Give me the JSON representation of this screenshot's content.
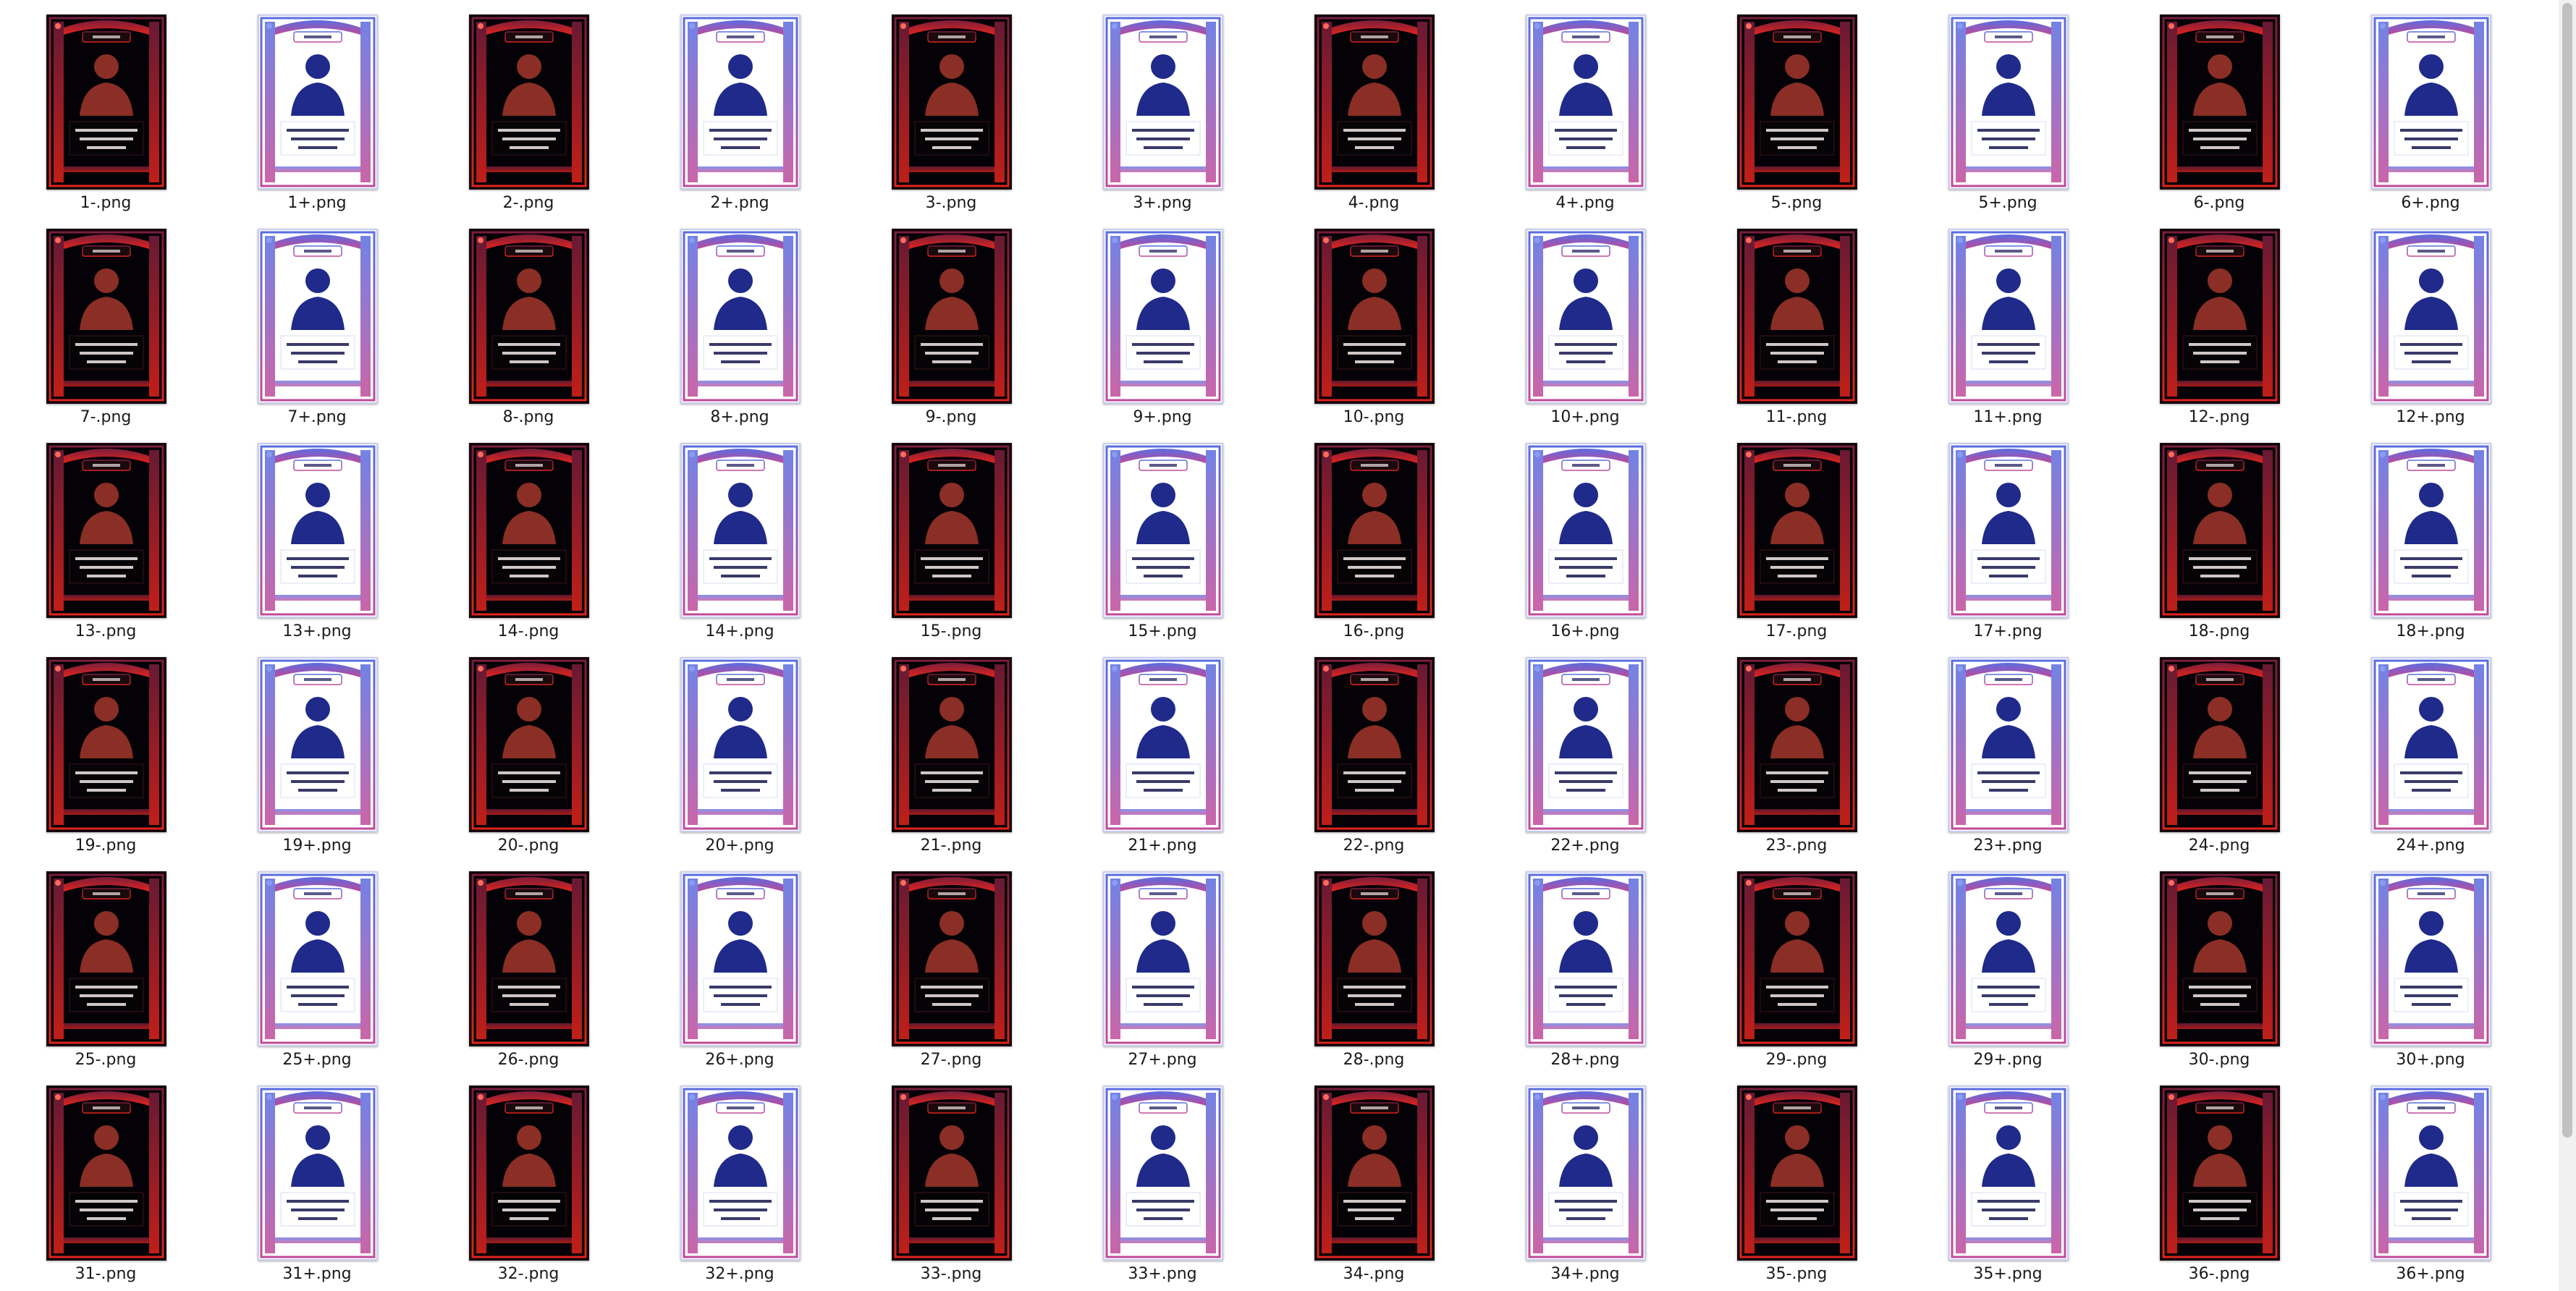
{
  "viewer": {
    "items": [
      {
        "label": "1-.png",
        "variant": "dark"
      },
      {
        "label": "1+.png",
        "variant": "light"
      },
      {
        "label": "2-.png",
        "variant": "dark"
      },
      {
        "label": "2+.png",
        "variant": "light"
      },
      {
        "label": "3-.png",
        "variant": "dark"
      },
      {
        "label": "3+.png",
        "variant": "light"
      },
      {
        "label": "4-.png",
        "variant": "dark"
      },
      {
        "label": "4+.png",
        "variant": "light"
      },
      {
        "label": "5-.png",
        "variant": "dark"
      },
      {
        "label": "5+.png",
        "variant": "light"
      },
      {
        "label": "6-.png",
        "variant": "dark"
      },
      {
        "label": "6+.png",
        "variant": "light"
      },
      {
        "label": "7-.png",
        "variant": "dark"
      },
      {
        "label": "7+.png",
        "variant": "light"
      },
      {
        "label": "8-.png",
        "variant": "dark"
      },
      {
        "label": "8+.png",
        "variant": "light"
      },
      {
        "label": "9-.png",
        "variant": "dark"
      },
      {
        "label": "9+.png",
        "variant": "light"
      },
      {
        "label": "10-.png",
        "variant": "dark"
      },
      {
        "label": "10+.png",
        "variant": "light"
      },
      {
        "label": "11-.png",
        "variant": "dark"
      },
      {
        "label": "11+.png",
        "variant": "light"
      },
      {
        "label": "12-.png",
        "variant": "dark"
      },
      {
        "label": "12+.png",
        "variant": "light"
      },
      {
        "label": "13-.png",
        "variant": "dark"
      },
      {
        "label": "13+.png",
        "variant": "light"
      },
      {
        "label": "14-.png",
        "variant": "dark"
      },
      {
        "label": "14+.png",
        "variant": "light"
      },
      {
        "label": "15-.png",
        "variant": "dark"
      },
      {
        "label": "15+.png",
        "variant": "light"
      },
      {
        "label": "16-.png",
        "variant": "dark"
      },
      {
        "label": "16+.png",
        "variant": "light"
      },
      {
        "label": "17-.png",
        "variant": "dark"
      },
      {
        "label": "17+.png",
        "variant": "light"
      },
      {
        "label": "18-.png",
        "variant": "dark"
      },
      {
        "label": "18+.png",
        "variant": "light"
      },
      {
        "label": "19-.png",
        "variant": "dark"
      },
      {
        "label": "19+.png",
        "variant": "light"
      },
      {
        "label": "20-.png",
        "variant": "dark"
      },
      {
        "label": "20+.png",
        "variant": "light"
      },
      {
        "label": "21-.png",
        "variant": "dark"
      },
      {
        "label": "21+.png",
        "variant": "light"
      },
      {
        "label": "22-.png",
        "variant": "dark"
      },
      {
        "label": "22+.png",
        "variant": "light"
      },
      {
        "label": "23-.png",
        "variant": "dark"
      },
      {
        "label": "23+.png",
        "variant": "light"
      },
      {
        "label": "24-.png",
        "variant": "dark"
      },
      {
        "label": "24+.png",
        "variant": "light"
      },
      {
        "label": "25-.png",
        "variant": "dark"
      },
      {
        "label": "25+.png",
        "variant": "light"
      },
      {
        "label": "26-.png",
        "variant": "dark"
      },
      {
        "label": "26+.png",
        "variant": "light"
      },
      {
        "label": "27-.png",
        "variant": "dark"
      },
      {
        "label": "27+.png",
        "variant": "light"
      },
      {
        "label": "28-.png",
        "variant": "dark"
      },
      {
        "label": "28+.png",
        "variant": "light"
      },
      {
        "label": "29-.png",
        "variant": "dark"
      },
      {
        "label": "29+.png",
        "variant": "light"
      },
      {
        "label": "30-.png",
        "variant": "dark"
      },
      {
        "label": "30+.png",
        "variant": "light"
      },
      {
        "label": "31-.png",
        "variant": "dark"
      },
      {
        "label": "31+.png",
        "variant": "light"
      },
      {
        "label": "32-.png",
        "variant": "dark"
      },
      {
        "label": "32+.png",
        "variant": "light"
      },
      {
        "label": "33-.png",
        "variant": "dark"
      },
      {
        "label": "33+.png",
        "variant": "light"
      },
      {
        "label": "34-.png",
        "variant": "dark"
      },
      {
        "label": "34+.png",
        "variant": "light"
      },
      {
        "label": "35-.png",
        "variant": "dark"
      },
      {
        "label": "35+.png",
        "variant": "light"
      },
      {
        "label": "36-.png",
        "variant": "dark"
      },
      {
        "label": "36+.png",
        "variant": "light"
      }
    ]
  },
  "colors": {
    "page_background": "#ffffff",
    "dark_card_background": "#040206",
    "dark_card_frame_top": "#7a1e3c",
    "dark_card_frame_bottom": "#e0241c",
    "dark_card_figure": "#8a2e26",
    "light_card_frame_top": "#5a6de0",
    "light_card_frame_bottom": "#c04a9a",
    "light_card_figure": "#1f2a8a",
    "label_text": "#1a1a1a",
    "scrollbar_track": "#f1f1f1",
    "scrollbar_thumb": "#c1c1c1"
  }
}
